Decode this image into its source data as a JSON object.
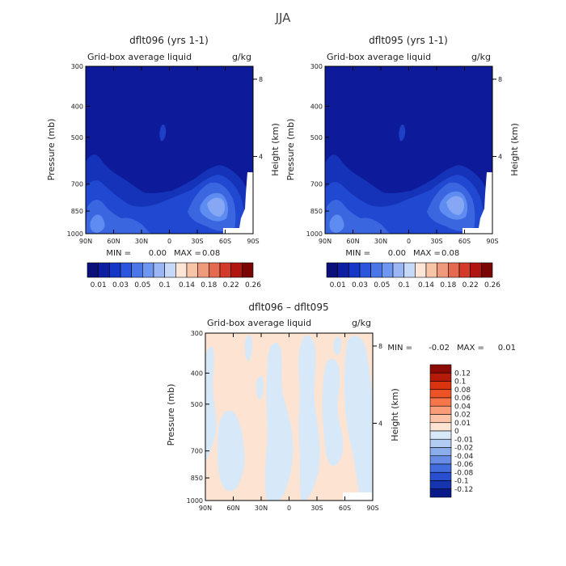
{
  "figure": {
    "suptitle": "JJA"
  },
  "chart_data": [
    {
      "type": "heatmap",
      "title": "dflt096 (yrs 1-1)",
      "subtitle": "Grid-box average liquid",
      "units": "g/kg",
      "xlabel": "",
      "ylabel": "Pressure (mb)",
      "y2label": "Height (km)",
      "x_ticks": [
        "90N",
        "60N",
        "30N",
        "0",
        "30S",
        "60S",
        "90S"
      ],
      "y_ticks": [
        "300",
        "400",
        "500",
        "700",
        "850",
        "1000"
      ],
      "y2_ticks": [
        "8",
        "4"
      ],
      "ylim": [
        1000,
        300
      ],
      "min_label": "MIN =",
      "min_value": "0.00",
      "max_label": "MAX =",
      "max_value": "0.08",
      "colorbar": {
        "orientation": "horizontal",
        "colors": [
          "#0a0f7a",
          "#0d1fa0",
          "#1437c8",
          "#2a55dc",
          "#4a76e8",
          "#6f96f0",
          "#9bb6f5",
          "#c7d9f8",
          "#fde6d8",
          "#f8c4a8",
          "#ef9a7a",
          "#e56a50",
          "#d33a2a",
          "#b01510",
          "#7a0505"
        ],
        "labels": [
          "0.01",
          "0.03",
          "0.05",
          "0.1",
          "0.14",
          "0.18",
          "0.22",
          "0.26"
        ]
      }
    },
    {
      "type": "heatmap",
      "title": "dflt095 (yrs 1-1)",
      "subtitle": "Grid-box average liquid",
      "units": "g/kg",
      "xlabel": "",
      "ylabel": "Pressure (mb)",
      "y2label": "Height (km)",
      "x_ticks": [
        "90N",
        "60N",
        "30N",
        "0",
        "30S",
        "60S",
        "90S"
      ],
      "y_ticks": [
        "300",
        "400",
        "500",
        "700",
        "850",
        "1000"
      ],
      "y2_ticks": [
        "8",
        "4"
      ],
      "ylim": [
        1000,
        300
      ],
      "min_label": "MIN =",
      "min_value": "0.00",
      "max_label": "MAX =",
      "max_value": "0.08",
      "colorbar": {
        "orientation": "horizontal",
        "colors": [
          "#0a0f7a",
          "#0d1fa0",
          "#1437c8",
          "#2a55dc",
          "#4a76e8",
          "#6f96f0",
          "#9bb6f5",
          "#c7d9f8",
          "#fde6d8",
          "#f8c4a8",
          "#ef9a7a",
          "#e56a50",
          "#d33a2a",
          "#b01510",
          "#7a0505"
        ],
        "labels": [
          "0.01",
          "0.03",
          "0.05",
          "0.1",
          "0.14",
          "0.18",
          "0.22",
          "0.26"
        ]
      }
    },
    {
      "type": "heatmap",
      "title": "dflt096 – dflt095",
      "subtitle": "Grid-box average liquid",
      "units": "g/kg",
      "xlabel": "",
      "ylabel": "Pressure (mb)",
      "y2label": "Height (km)",
      "x_ticks": [
        "90N",
        "60N",
        "30N",
        "0",
        "30S",
        "60S",
        "90S"
      ],
      "y_ticks": [
        "300",
        "400",
        "500",
        "700",
        "850",
        "1000"
      ],
      "y2_ticks": [
        "8",
        "4"
      ],
      "ylim": [
        1000,
        300
      ],
      "min_label": "MIN =",
      "min_value": "-0.02",
      "max_label": "MAX =",
      "max_value": "0.01",
      "colorbar": {
        "orientation": "vertical",
        "colors": [
          "#8b0a05",
          "#b81a0a",
          "#d9330f",
          "#ee5326",
          "#f6754a",
          "#f99c78",
          "#fbc2a6",
          "#fde4d2",
          "#d7e8f8",
          "#b3cdf2",
          "#8badec",
          "#668ce6",
          "#436ddf",
          "#274fd0",
          "#1534b0",
          "#0a1a88"
        ],
        "labels": [
          "0.12",
          "0.1",
          "0.08",
          "0.06",
          "0.04",
          "0.02",
          "0.01",
          "0",
          "-0.01",
          "-0.02",
          "-0.04",
          "-0.06",
          "-0.08",
          "-0.1",
          "-0.12"
        ]
      }
    }
  ]
}
